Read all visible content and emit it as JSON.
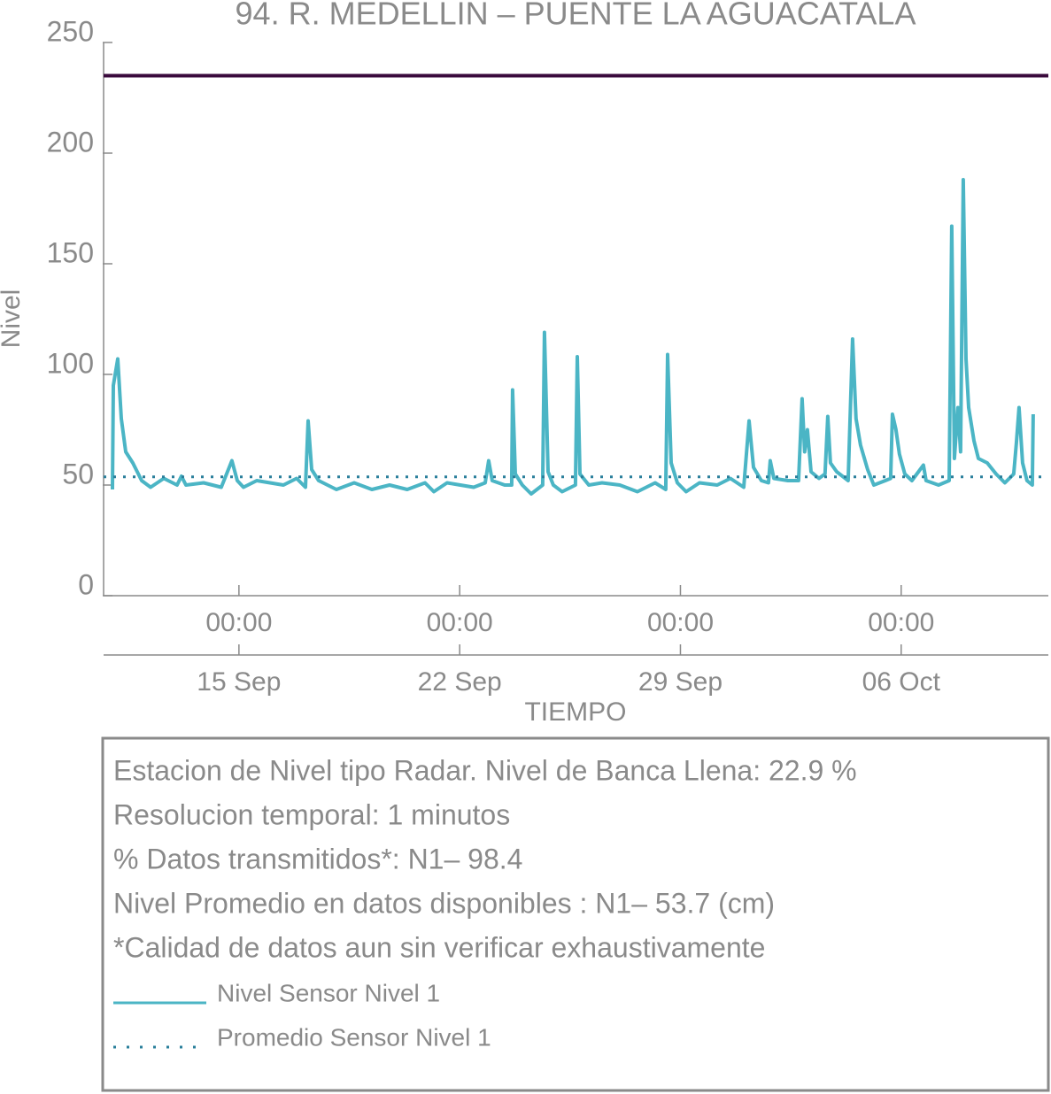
{
  "chart_data": {
    "type": "line",
    "title": "94. R. MEDELLIN – PUENTE LA AGUACATALA",
    "xlabel": "TIEMPO",
    "ylabel": "Nivel",
    "ylim": [
      0,
      250
    ],
    "yticks": [
      0,
      50,
      100,
      150,
      200,
      250
    ],
    "xlim": [
      "10 Sep 17:00",
      "10 Oct 16:00"
    ],
    "xticks": [
      {
        "value": "15 Sep 00:00",
        "label": "00:00",
        "date": "15 Sep"
      },
      {
        "value": "22 Sep 00:00",
        "label": "00:00",
        "date": "22 Sep"
      },
      {
        "value": "29 Sep 00:00",
        "label": "00:00",
        "date": "29 Sep"
      },
      {
        "value": "06 Oct 00:00",
        "label": "00:00",
        "date": "06 Oct"
      }
    ],
    "reference_lines": [
      {
        "value": 235,
        "color": "#3a0a3c"
      }
    ],
    "x": [
      "10 Sep 23:45",
      "11 Sep 00:25",
      "11 Sep 03:45",
      "11 Sep 06:30",
      "11 Sep 09:50",
      "11 Sep 15:15",
      "11 Sep 22:00",
      "12 Sep 04:45",
      "12 Sep 14:50",
      "13 Sep 00:55",
      "13 Sep 04:15",
      "13 Sep 07:40",
      "13 Sep 21:10",
      "14 Sep 10:35",
      "14 Sep 18:40",
      "14 Sep 22:45",
      "15 Sep 03:30",
      "15 Sep 13:35",
      "15 Sep 23:40",
      "16 Sep 09:50",
      "16 Sep 19:55",
      "17 Sep 02:40",
      "17 Sep 04:40",
      "17 Sep 07:20",
      "17 Sep 12:40",
      "18 Sep 02:10",
      "18 Sep 15:40",
      "19 Sep 05:10",
      "19 Sep 18:40",
      "20 Sep 08:05",
      "20 Sep 21:35",
      "21 Sep 04:20",
      "21 Sep 14:25",
      "22 Sep 00:30",
      "22 Sep 10:40",
      "22 Sep 19:25",
      "22 Sep 22:05",
      "23 Sep 00:45",
      "23 Sep 10:15",
      "23 Sep 15:35",
      "23 Sep 16:15",
      "23 Sep 18:20",
      "23 Sep 23:40",
      "24 Sep 06:25",
      "24 Sep 15:10",
      "24 Sep 16:30",
      "24 Sep 19:15",
      "24 Sep 23:15",
      "25 Sep 06:00",
      "25 Sep 16:05",
      "25 Sep 17:30",
      "25 Sep 19:30",
      "26 Sep 02:15",
      "26 Sep 12:20",
      "27 Sep 01:50",
      "27 Sep 15:15",
      "28 Sep 04:45",
      "28 Sep 12:50",
      "28 Sep 14:15",
      "28 Sep 16:55",
      "28 Sep 21:40",
      "29 Sep 04:20",
      "29 Sep 14:30",
      "30 Sep 04:00",
      "30 Sep 14:00",
      "01 Oct 00:10",
      "01 Oct 04:15",
      "01 Oct 07:35",
      "01 Oct 13:35",
      "01 Oct 19:00",
      "01 Oct 20:20",
      "01 Oct 23:05",
      "02 Oct 09:50",
      "02 Oct 17:55",
      "02 Oct 20:35",
      "02 Oct 22:35",
      "03 Oct 00:40",
      "03 Oct 03:25",
      "03 Oct 09:25",
      "03 Oct 14:05",
      "03 Oct 16:10",
      "03 Oct 18:10",
      "03 Oct 22:55",
      "04 Oct 07:40",
      "04 Oct 11:00",
      "04 Oct 13:40",
      "04 Oct 17:05",
      "04 Oct 22:30",
      "05 Oct 03:10",
      "05 Oct 11:55",
      "05 Oct 16:00",
      "05 Oct 17:20",
      "05 Oct 20:00",
      "05 Oct 22:40",
      "06 Oct 02:45",
      "06 Oct 08:10",
      "06 Oct 16:55",
      "06 Oct 18:55",
      "07 Oct 04:25",
      "07 Oct 12:30",
      "07 Oct 14:30",
      "07 Oct 16:30",
      "07 Oct 19:10",
      "07 Oct 21:15",
      "07 Oct 23:15",
      "08 Oct 01:20",
      "08 Oct 03:20",
      "08 Oct 07:25",
      "08 Oct 10:45",
      "08 Oct 17:30",
      "09 Oct 00:15",
      "09 Oct 06:55",
      "09 Oct 13:40",
      "09 Oct 15:40",
      "09 Oct 17:40",
      "09 Oct 20:25",
      "09 Oct 23:45",
      "10 Oct 03:50",
      "10 Oct 04:30"
    ],
    "series": [
      {
        "name": "Nivel Sensor Nivel 1",
        "color": "#4bb5c5",
        "style": "solid",
        "values": [
          48,
          95,
          107,
          80,
          65,
          60,
          52,
          49,
          53,
          50,
          54,
          50,
          51,
          49,
          61,
          52,
          49,
          52,
          51,
          50,
          53,
          49,
          79,
          57,
          52,
          48,
          51,
          48,
          50,
          48,
          51,
          47,
          51,
          50,
          49,
          51,
          61,
          52,
          50,
          50,
          93,
          55,
          50,
          46,
          50,
          119,
          56,
          50,
          47,
          50,
          108,
          55,
          50,
          51,
          50,
          47,
          51,
          48,
          109,
          60,
          51,
          47,
          51,
          50,
          53,
          49,
          79,
          58,
          52,
          51,
          61,
          53,
          52,
          52,
          89,
          65,
          75,
          56,
          53,
          55,
          81,
          60,
          56,
          52,
          116,
          80,
          68,
          57,
          50,
          52,
          53,
          82,
          75,
          64,
          55,
          52,
          59,
          52,
          50,
          52,
          167,
          62,
          85,
          65,
          188,
          107,
          85,
          70,
          62,
          60,
          55,
          51,
          55,
          69,
          85,
          60,
          52,
          50,
          82
        ]
      },
      {
        "name": "Promedio Sensor Nivel 1",
        "color": "#2a7f9b",
        "style": "dotted",
        "y": 53.7
      }
    ],
    "info": [
      "Estacion de Nivel tipo Radar. Nivel de Banca Llena: 22.9 %",
      "Resolucion temporal: 1 minutos",
      "% Datos transmitidos*: N1– 98.4",
      "Nivel Promedio en datos disponibles : N1– 53.7 (cm)",
      "*Calidad de datos aun sin verificar exhaustivamente"
    ]
  }
}
